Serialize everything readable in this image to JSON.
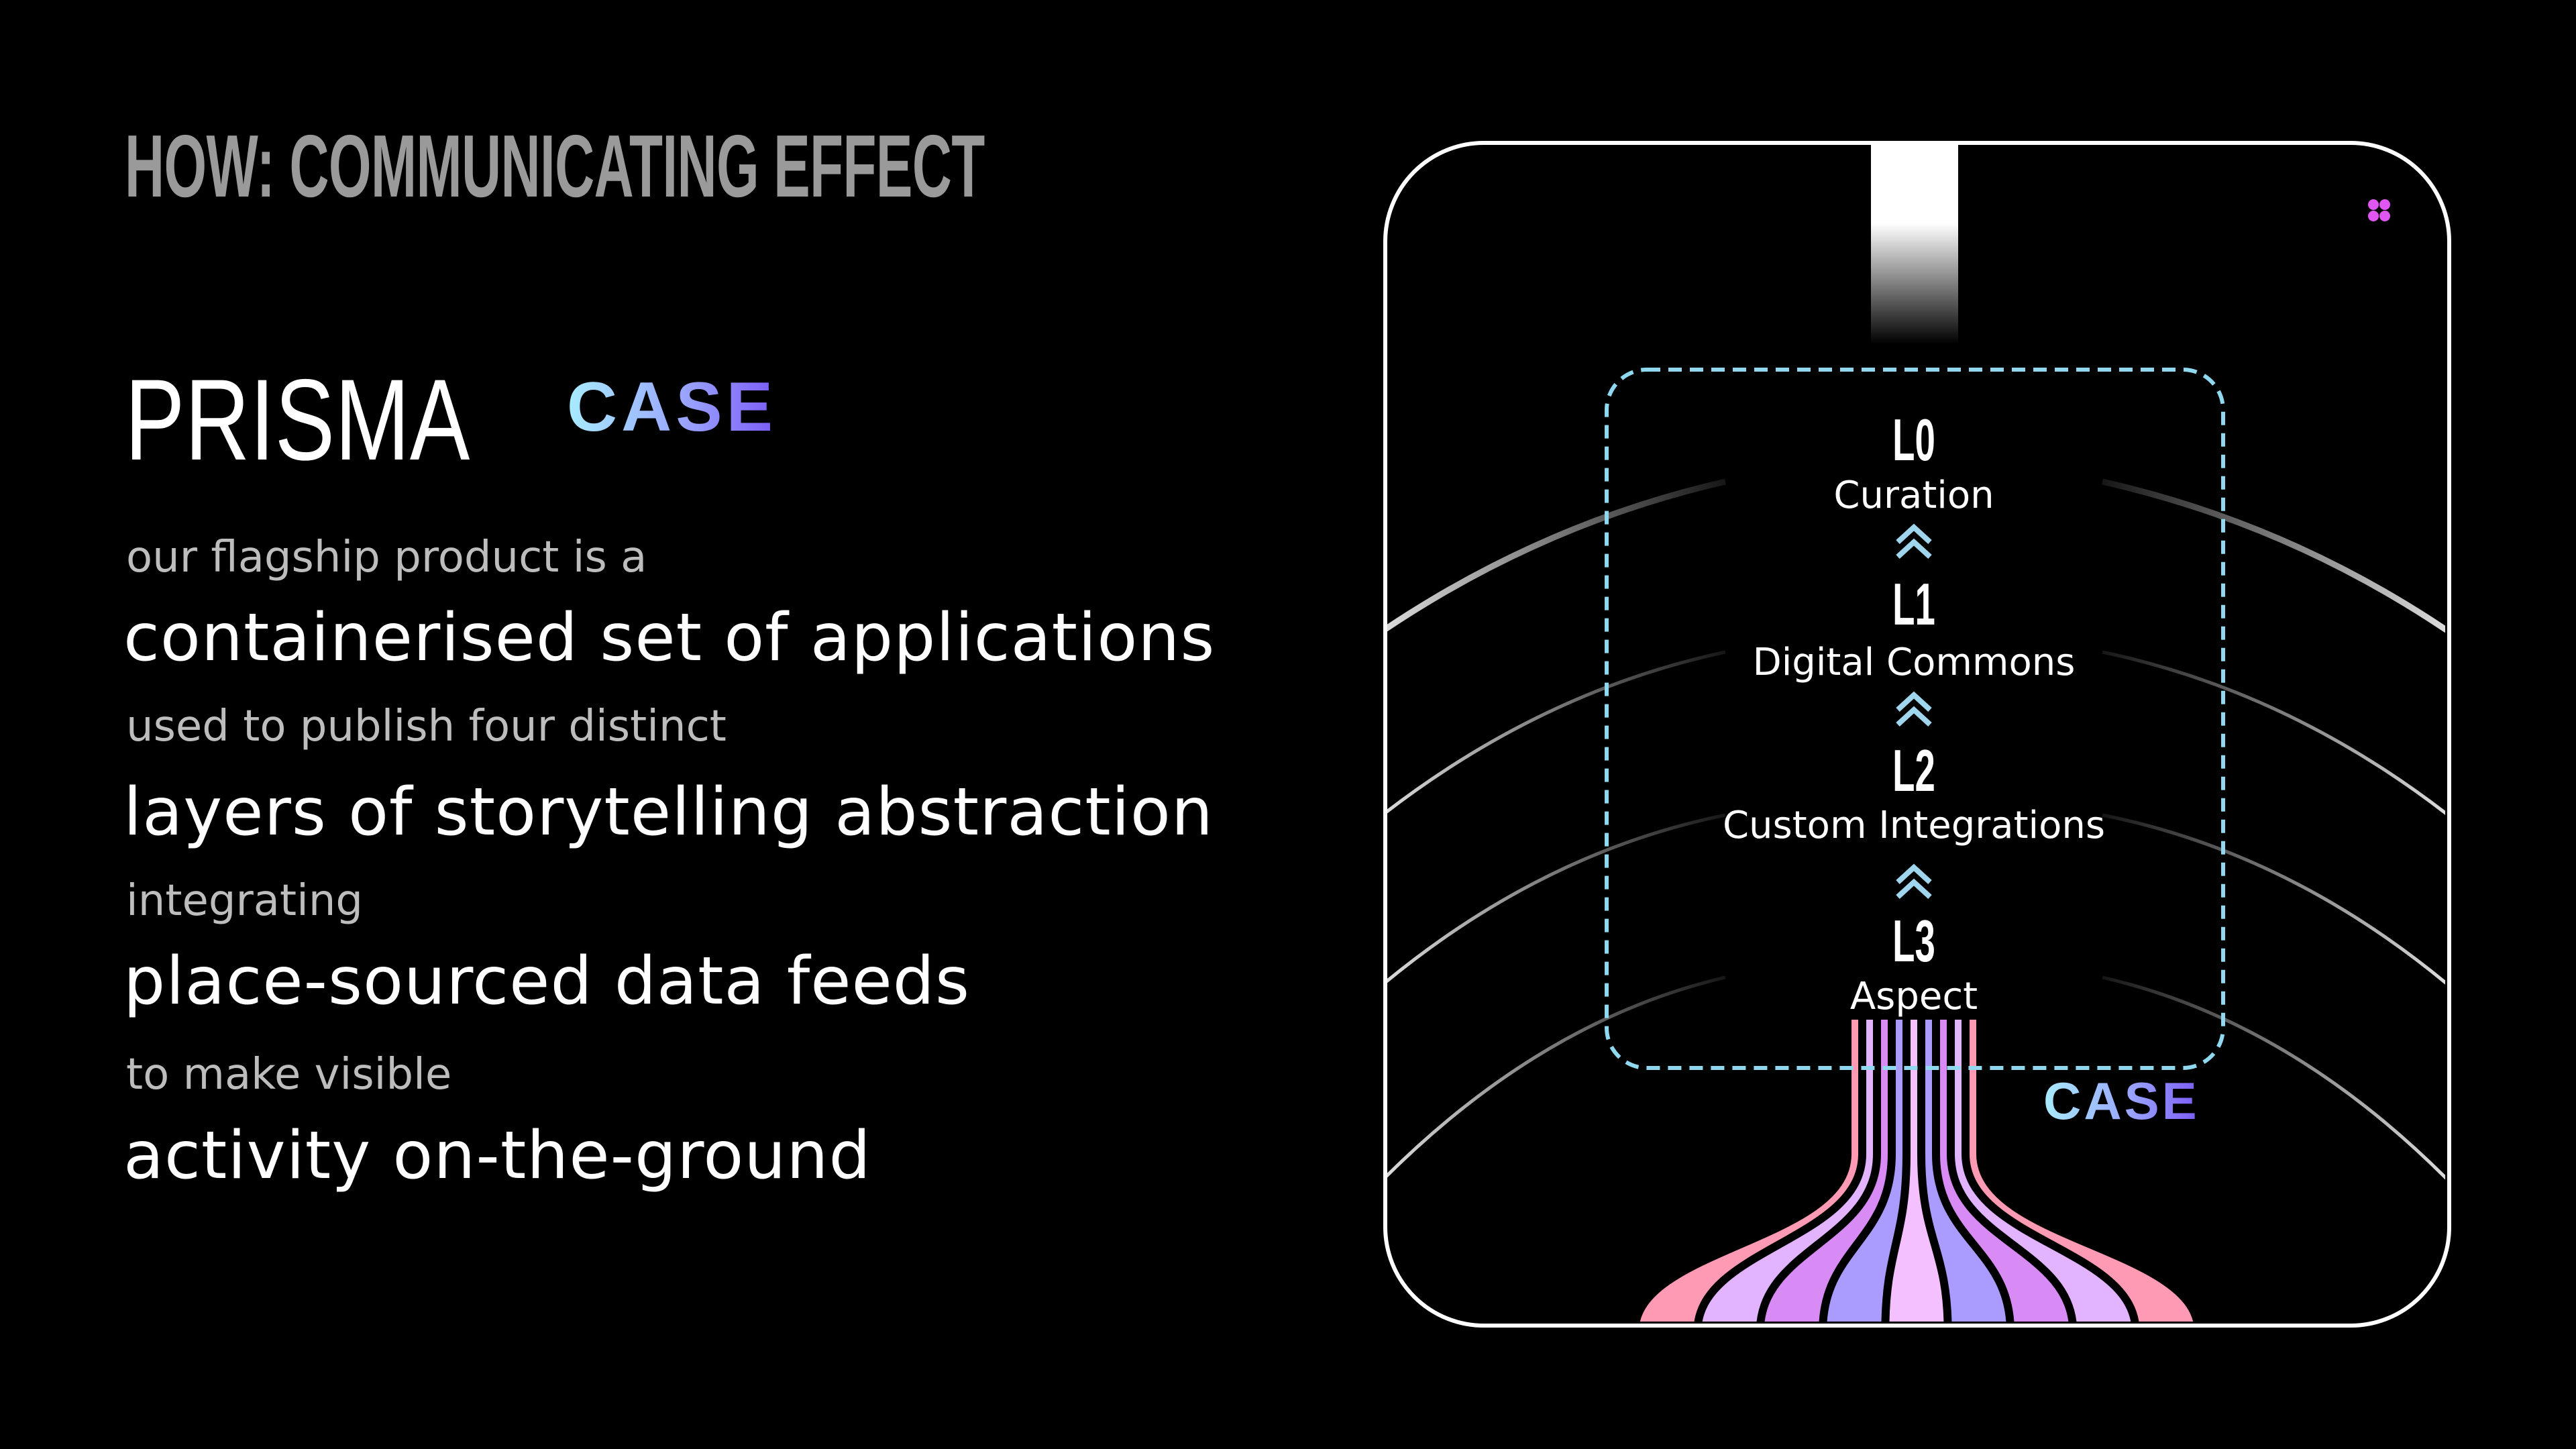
{
  "title": "HOW: COMMUNICATING EFFECT",
  "logos": {
    "prisma": "PRISMA",
    "case": "CASE",
    "case_small": "CASE"
  },
  "lines": [
    {
      "small": "our flagship product is a",
      "big": "containerised set of applications"
    },
    {
      "small": "used to publish four distinct",
      "big": "layers of storytelling abstraction"
    },
    {
      "small": "integrating",
      "big": "place-sourced data feeds"
    },
    {
      "small": "to make visible",
      "big": "activity on-the-ground"
    }
  ],
  "layers": [
    {
      "code": "L0",
      "name": "Curation"
    },
    {
      "code": "L1",
      "name": "Digital Commons"
    },
    {
      "code": "L2",
      "name": "Custom Integrations"
    },
    {
      "code": "L3",
      "name": "Aspect"
    }
  ],
  "icons": {
    "chevron": "double-chevron-up-icon",
    "dots": "four-dots-icon"
  },
  "colors": {
    "background": "#000000",
    "title": "#9a9a9a",
    "dashed_box": "#8fd8f0",
    "dots": "#e056f0",
    "stripes": [
      "#ff9ab5",
      "#e2b4ff",
      "#d88af5",
      "#aa9cff",
      "#f5c0ff",
      "#aa9cff",
      "#d88af5",
      "#e2b4ff",
      "#ff9ab5"
    ]
  }
}
